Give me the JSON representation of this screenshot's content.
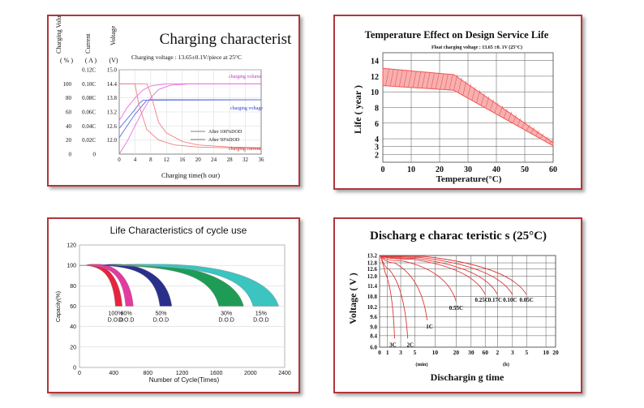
{
  "charts": [
    {
      "id": "charging",
      "type": "line",
      "title": "Charging characterist",
      "subtitle": "Charging voltage :   13.65±0.1V/piece  at 25°C",
      "xlabel": "Charging time(h our)",
      "x_ticks": [
        "0",
        "4",
        "8",
        "12",
        "16",
        "20",
        "24",
        "28",
        "32",
        "36"
      ],
      "xlim": [
        0,
        36
      ],
      "axis_headers": [
        {
          "label": "Charging Volume",
          "unit": "( % )"
        },
        {
          "label": "Current",
          "unit": "( A )"
        },
        {
          "label": "Voltage",
          "unit": "(V)"
        }
      ],
      "volume_ticks": [
        "100",
        "80",
        "60",
        "40",
        "20",
        "0"
      ],
      "current_ticks": [
        "0.12C",
        "0.10C",
        "0.08C",
        "0.06C",
        "0.04C",
        "0.02C",
        "0"
      ],
      "voltage_ticks": [
        "15.0",
        "14.4",
        "13.8",
        "13.2",
        "12.6",
        "12.0"
      ],
      "ylim_voltage": [
        11.4,
        15.0
      ],
      "annotations": [
        "charging volume",
        "charging voltage",
        "charging current"
      ],
      "legend": [
        "After 100%DOD",
        "After 50%DOD"
      ],
      "series": [
        {
          "name": "charging volume (100%DOD)",
          "color": "#e86fe0",
          "points": [
            [
              0,
              0
            ],
            [
              2,
              18
            ],
            [
              4,
              40
            ],
            [
              6,
              62
            ],
            [
              8,
              80
            ],
            [
              10,
              92
            ],
            [
              13,
              98
            ],
            [
              18,
              100
            ],
            [
              36,
              100
            ]
          ]
        },
        {
          "name": "charging volume (50%DOD)",
          "color": "#e86fe0",
          "points": [
            [
              0,
              48
            ],
            [
              2,
              66
            ],
            [
              4,
              80
            ],
            [
              6,
              91
            ],
            [
              8,
              97
            ],
            [
              12,
              100
            ],
            [
              36,
              100
            ]
          ]
        },
        {
          "name": "charging voltage (100%DOD)",
          "color": "#5a6ee0",
          "points": [
            [
              0,
              12.1
            ],
            [
              2,
              12.6
            ],
            [
              4,
              13.1
            ],
            [
              6,
              13.5
            ],
            [
              7,
              13.7
            ],
            [
              8,
              13.72
            ],
            [
              36,
              13.72
            ]
          ]
        },
        {
          "name": "charging voltage (50%DOD)",
          "color": "#5a6ee0",
          "points": [
            [
              0,
              12.5
            ],
            [
              2,
              12.9
            ],
            [
              4,
              13.3
            ],
            [
              5,
              13.55
            ],
            [
              6,
              13.7
            ],
            [
              36,
              13.72
            ]
          ]
        },
        {
          "name": "charging current (100%DOD)",
          "color": "#f08080",
          "points": [
            [
              0,
              0.1
            ],
            [
              7,
              0.1
            ],
            [
              8,
              0.085
            ],
            [
              10,
              0.045
            ],
            [
              12,
              0.03
            ],
            [
              16,
              0.018
            ],
            [
              20,
              0.013
            ],
            [
              28,
              0.01
            ],
            [
              36,
              0.009
            ]
          ]
        },
        {
          "name": "charging current (50%DOD)",
          "color": "#f08080",
          "points": [
            [
              0,
              0.1
            ],
            [
              4,
              0.1
            ],
            [
              5,
              0.07
            ],
            [
              7,
              0.035
            ],
            [
              10,
              0.02
            ],
            [
              14,
              0.013
            ],
            [
              20,
              0.01
            ],
            [
              36,
              0.008
            ]
          ]
        }
      ]
    },
    {
      "id": "temperature",
      "type": "area",
      "title": "Temperature Effect on Design Service Life",
      "subtitle": "Float charging voltage : 13.65 ±0. 1V (25°C)",
      "xlabel": "Temperature(°C)",
      "ylabel": "Life ( year )",
      "x_ticks": [
        "0",
        "10",
        "20",
        "30",
        "40",
        "50",
        "60"
      ],
      "y_ticks": [
        "14",
        "12",
        "10",
        "8",
        "6",
        "4",
        "3",
        "2"
      ],
      "xlim": [
        0,
        60
      ],
      "ylim": [
        1,
        15
      ],
      "band_upper": [
        [
          0,
          13
        ],
        [
          25,
          12.2
        ],
        [
          60,
          3.5
        ]
      ],
      "band_lower": [
        [
          0,
          10.8
        ],
        [
          25,
          10.2
        ],
        [
          60,
          3.1
        ]
      ],
      "color": "#f25555"
    },
    {
      "id": "cycle",
      "type": "area",
      "title": "Life Characteristics of cycle use",
      "xlabel": "Number of Cycle(Times)",
      "ylabel": "Capacity(%)",
      "x_ticks": [
        "0",
        "400",
        "800",
        "1200",
        "1600",
        "2000",
        "2400"
      ],
      "y_ticks": [
        "120",
        "100",
        "80",
        "60",
        "40",
        "20",
        "0"
      ],
      "xlim": [
        0,
        2400
      ],
      "ylim": [
        0,
        120
      ],
      "bands": [
        {
          "dod": "100%",
          "label": "D.O.D",
          "color": "#e8233f",
          "start": 120,
          "outer_end": 500,
          "inner_end": 420
        },
        {
          "dod": "80%",
          "label": "D.O.D",
          "color": "#e23aa0",
          "start": 200,
          "outer_end": 630,
          "inner_end": 540
        },
        {
          "dod": "50%",
          "label": "D.O.D",
          "color": "#2b2f8c",
          "start": 420,
          "outer_end": 1080,
          "inner_end": 940
        },
        {
          "dod": "30%",
          "label": "D.O.D",
          "color": "#1e9c56",
          "start": 650,
          "outer_end": 1920,
          "inner_end": 1630
        },
        {
          "dod": "15%",
          "label": "D.O.D",
          "color": "#3cc4c0",
          "start": 900,
          "outer_end": 2330,
          "inner_end": 2030
        }
      ]
    },
    {
      "id": "discharge",
      "type": "line",
      "title": "Discharg e charac teristic s (25°C)",
      "xlabel": "Dischargin g time",
      "ylabel": "Voltage ( V )",
      "x_ticks": [
        "0",
        "1",
        "3",
        "5",
        "10",
        "20",
        "30",
        "60",
        "2",
        "3",
        "5",
        "10",
        "20"
      ],
      "unit_labels": [
        "(min)",
        "(h)"
      ],
      "y_ticks": [
        "13.2",
        "12.8",
        "12.6",
        "12.0",
        "11.4",
        "10.8",
        "10.2",
        "9.6",
        "9.0",
        "8.4",
        "6.0"
      ],
      "color": "#e03333",
      "series": [
        {
          "name": "3C",
          "end_time": "6 min",
          "end_voltage": 7.8
        },
        {
          "name": "2C",
          "end_time": "12 min",
          "end_voltage": 7.8
        },
        {
          "name": "1C",
          "end_time": "40 min",
          "end_voltage": 9.4
        },
        {
          "name": "0.55C",
          "end_time": "1 h",
          "end_voltage": 10.5
        },
        {
          "name": "0.25C",
          "end_time": "3 h",
          "end_voltage": 10.9
        },
        {
          "name": "0.17C",
          "end_time": "5 h",
          "end_voltage": 10.9
        },
        {
          "name": "0.10C",
          "end_time": "10 h",
          "end_voltage": 10.9
        },
        {
          "name": "0.05C",
          "end_time": "20 h",
          "end_voltage": 10.9
        }
      ]
    }
  ]
}
